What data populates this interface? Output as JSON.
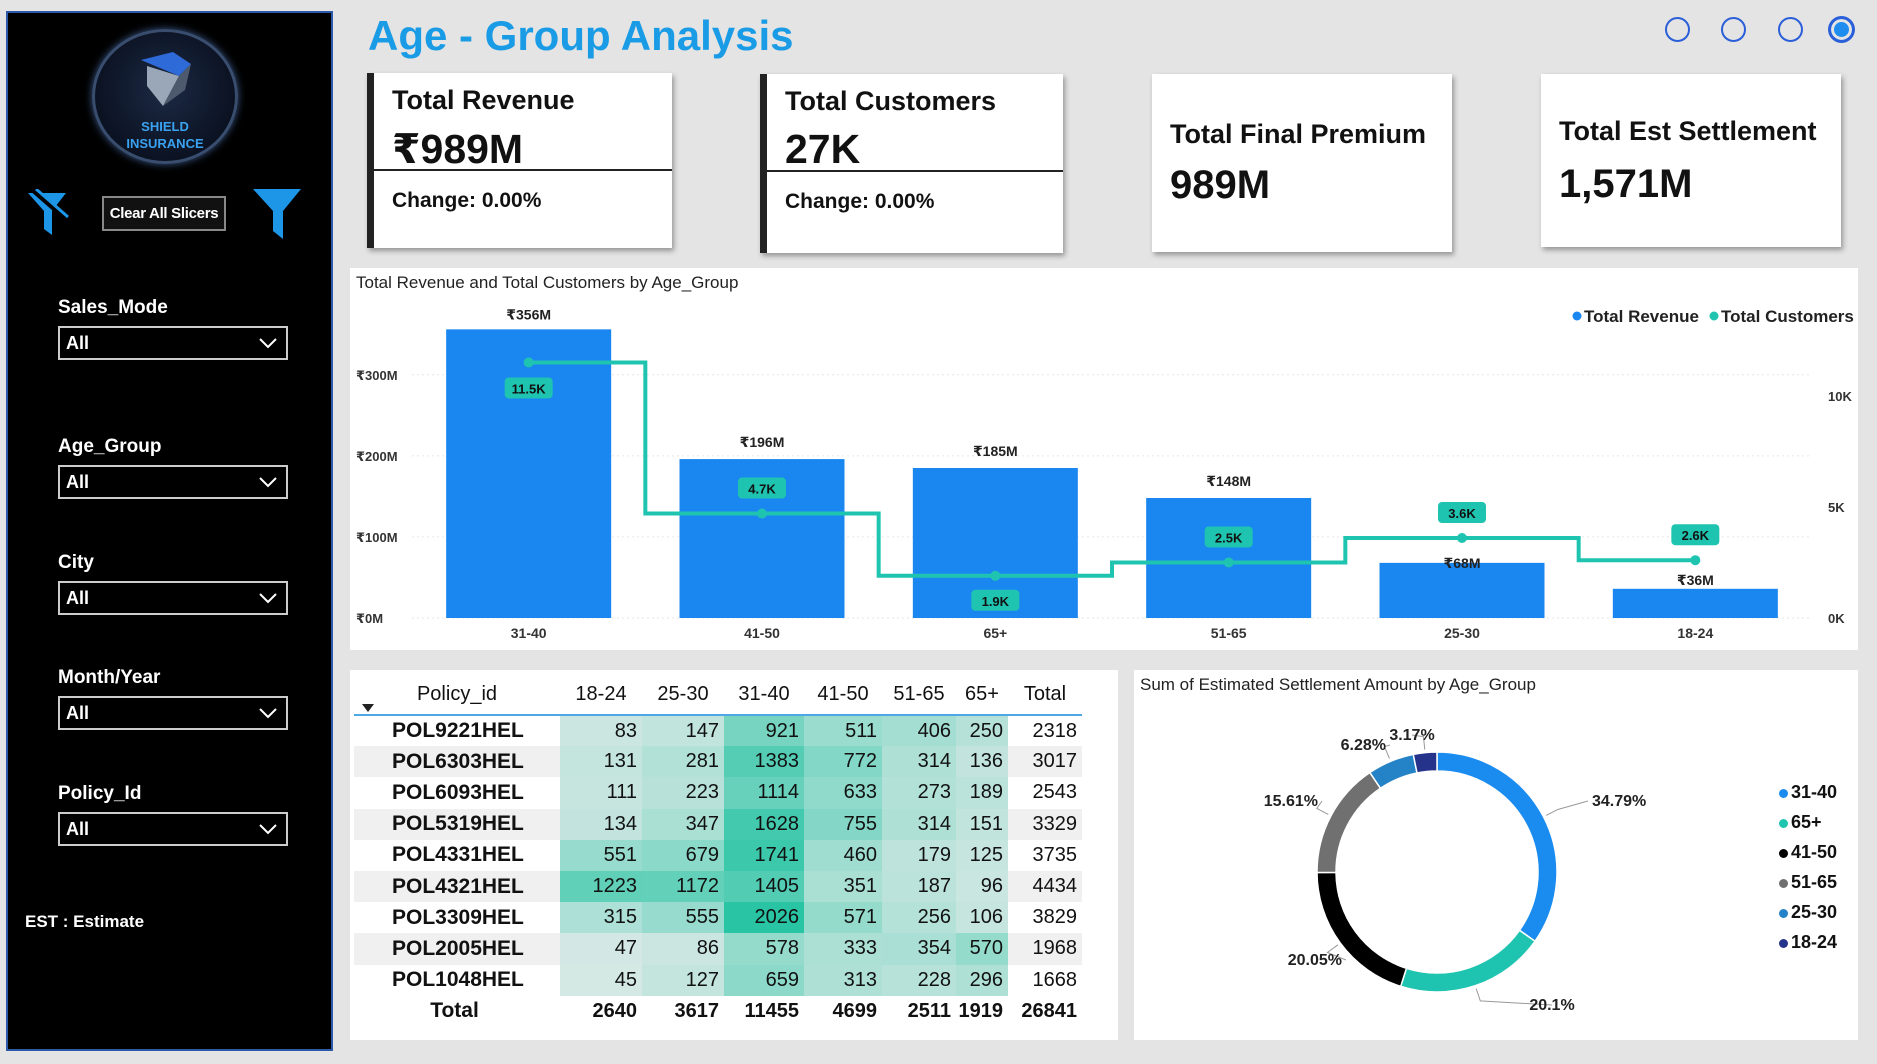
{
  "sidebar": {
    "logo_text_line1": "SHIELD",
    "logo_text_line2": "INSURANCE",
    "clear_button": "Clear All Slicers",
    "slicers": [
      {
        "label": "Sales_Mode",
        "value": "All"
      },
      {
        "label": "Age_Group",
        "value": "All"
      },
      {
        "label": "City",
        "value": "All"
      },
      {
        "label": "Month/Year",
        "value": "All"
      },
      {
        "label": "Policy_Id",
        "value": "All"
      }
    ],
    "note": "EST : Estimate"
  },
  "header": {
    "title": "Age - Group Analysis",
    "page_count": 4,
    "active_page": 4
  },
  "kpis": {
    "revenue": {
      "title": "Total Revenue",
      "value": "₹989M",
      "change": "Change: 0.00%"
    },
    "customers": {
      "title": "Total Customers",
      "value": "27K",
      "change": "Change: 0.00%"
    },
    "premium": {
      "title": "Total Final Premium",
      "value": "989M"
    },
    "settlement": {
      "title": "Total Est Settlement",
      "value": "1,571M"
    }
  },
  "combo_chart": {
    "title": "Total Revenue and Total Customers by Age_Group",
    "legend": [
      "Total Revenue",
      "Total Customers"
    ],
    "colors": {
      "revenue": "#1a86f0",
      "customers": "#1fc4b0"
    },
    "chart_data": {
      "type": "bar",
      "categories": [
        "31-40",
        "41-50",
        "65+",
        "51-65",
        "25-30",
        "18-24"
      ],
      "series": [
        {
          "name": "Total Revenue",
          "axis": "left",
          "values": [
            356,
            196,
            185,
            148,
            68,
            36
          ],
          "labels": [
            "₹356M",
            "₹196M",
            "₹185M",
            "₹148M",
            "₹68M",
            "₹36M"
          ]
        },
        {
          "name": "Total Customers",
          "axis": "right",
          "type": "line",
          "values": [
            11.5,
            4.7,
            1.9,
            2.5,
            3.6,
            2.6
          ],
          "labels": [
            "11.5K",
            "4.7K",
            "1.9K",
            "2.5K",
            "3.6K",
            "2.6K"
          ]
        }
      ],
      "y_left": {
        "ticks": [
          0,
          100,
          200,
          300
        ],
        "tick_labels": [
          "₹0M",
          "₹100M",
          "₹200M",
          "₹300M"
        ],
        "max": 370
      },
      "y_right": {
        "ticks": [
          0,
          5,
          10
        ],
        "tick_labels": [
          "0K",
          "5K",
          "10K"
        ],
        "max": 13.5
      },
      "legend_position": "top-right"
    }
  },
  "matrix": {
    "row_header": "Policy_id",
    "columns": [
      "18-24",
      "25-30",
      "31-40",
      "41-50",
      "51-65",
      "65+",
      "Total"
    ],
    "rows": [
      {
        "id": "POL9221HEL",
        "values": [
          83,
          147,
          921,
          511,
          406,
          250,
          2318
        ]
      },
      {
        "id": "POL6303HEL",
        "values": [
          131,
          281,
          1383,
          772,
          314,
          136,
          3017
        ]
      },
      {
        "id": "POL6093HEL",
        "values": [
          111,
          223,
          1114,
          633,
          273,
          189,
          2543
        ]
      },
      {
        "id": "POL5319HEL",
        "values": [
          134,
          347,
          1628,
          755,
          314,
          151,
          3329
        ]
      },
      {
        "id": "POL4331HEL",
        "values": [
          551,
          679,
          1741,
          460,
          179,
          125,
          3735
        ]
      },
      {
        "id": "POL4321HEL",
        "values": [
          1223,
          1172,
          1405,
          351,
          187,
          96,
          4434
        ]
      },
      {
        "id": "POL3309HEL",
        "values": [
          315,
          555,
          2026,
          571,
          256,
          106,
          3829
        ]
      },
      {
        "id": "POL2005HEL",
        "values": [
          47,
          86,
          578,
          333,
          354,
          570,
          1968
        ]
      },
      {
        "id": "POL1048HEL",
        "values": [
          45,
          127,
          659,
          313,
          228,
          296,
          1668
        ]
      }
    ],
    "total_label": "Total",
    "totals": [
      2640,
      3617,
      11455,
      4699,
      2511,
      1919,
      26841
    ]
  },
  "donut": {
    "title": "Sum of Estimated Settlement Amount by Age_Group",
    "chart_data": {
      "type": "pie",
      "donut": true,
      "slices": [
        {
          "name": "31-40",
          "value": 34.79,
          "label": "34.79%",
          "color": "#1a8cf0"
        },
        {
          "name": "65+",
          "value": 20.1,
          "label": "20.1%",
          "color": "#1fc4b0"
        },
        {
          "name": "41-50",
          "value": 20.05,
          "label": "20.05%",
          "color": "#000000"
        },
        {
          "name": "51-65",
          "value": 15.61,
          "label": "15.61%",
          "color": "#707070"
        },
        {
          "name": "25-30",
          "value": 6.28,
          "label": "6.28%",
          "color": "#2482c6"
        },
        {
          "name": "18-24",
          "value": 3.17,
          "label": "3.17%",
          "color": "#26338a"
        }
      ],
      "legend_position": "right"
    }
  }
}
